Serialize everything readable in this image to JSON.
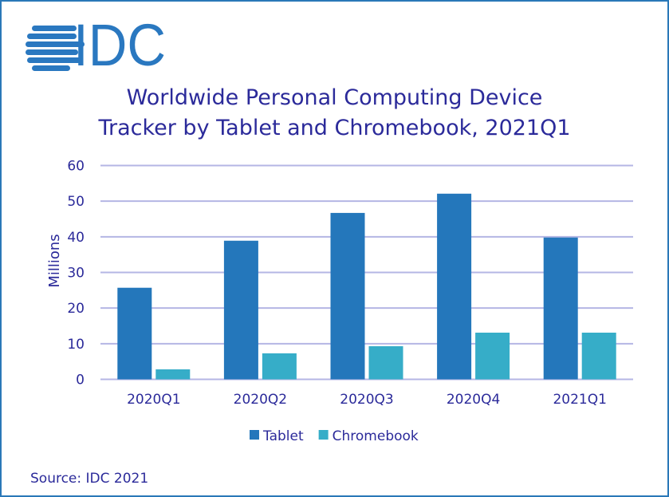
{
  "logo": {
    "text": "IDC",
    "color": "#2a78c0"
  },
  "source": "Source: IDC 2021",
  "chart_data": {
    "type": "bar",
    "title": "Worldwide Personal Computing Device Tracker by Tablet and Chromebook, 2021Q1",
    "title_lines": [
      "Worldwide Personal Computing Device",
      "Tracker by Tablet and Chromebook, 2021Q1"
    ],
    "xlabel": "",
    "ylabel": "Millions",
    "ylim": [
      0,
      60
    ],
    "yticks": [
      0,
      10,
      20,
      30,
      40,
      50,
      60
    ],
    "grid": true,
    "legend": "bottom",
    "categories": [
      "2020Q1",
      "2020Q2",
      "2020Q3",
      "2020Q4",
      "2021Q1"
    ],
    "series": [
      {
        "name": "Tablet",
        "color": "#2477bb",
        "values": [
          25.7,
          38.9,
          46.7,
          52.1,
          39.8
        ]
      },
      {
        "name": "Chromebook",
        "color": "#36adc8",
        "values": [
          2.8,
          7.3,
          9.3,
          13.1,
          13.1
        ]
      }
    ]
  }
}
